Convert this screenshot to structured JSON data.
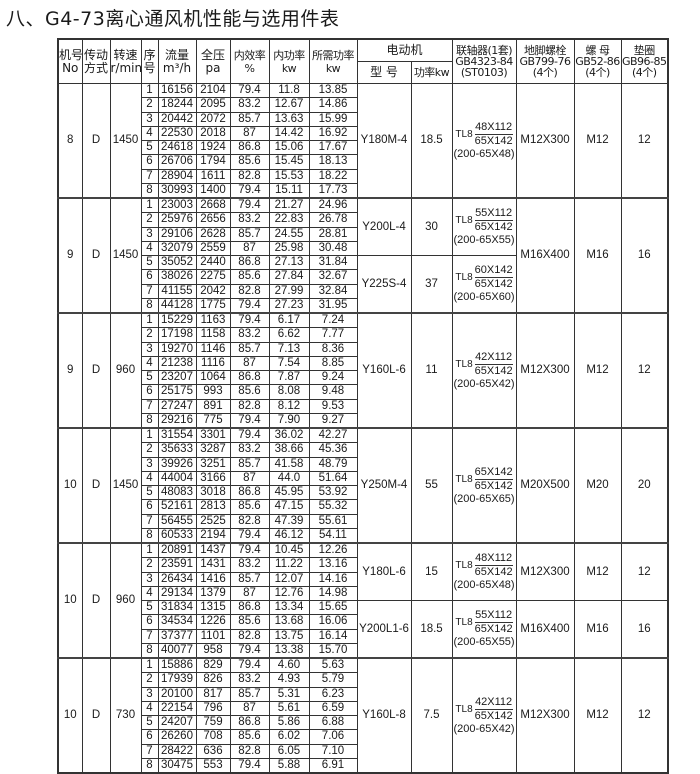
{
  "title": "八、G4-73离心通风机性能与选用件表",
  "header": {
    "machine_no": [
      "机号",
      "No"
    ],
    "drive": [
      "传动",
      "方式"
    ],
    "speed": [
      "转速",
      "r/min"
    ],
    "seq": [
      "序",
      "号"
    ],
    "flow": [
      "流量",
      "m³/h"
    ],
    "pressure": [
      "全压",
      "pa"
    ],
    "efficiency": [
      "内效率",
      "%"
    ],
    "internal_power": [
      "内功率",
      "kw"
    ],
    "required_power": [
      "所需功率",
      "kw"
    ],
    "motor": "电动机",
    "motor_model": "型 号",
    "motor_power": "功率kw",
    "coupling": [
      "联轴器(1套)",
      "GB4323-84",
      "(ST0103)"
    ],
    "anchor_bolt": [
      "地脚螺栓",
      "GB799-76",
      "(4个)"
    ],
    "nut": [
      "螺 母",
      "GB52-86",
      "(4个)"
    ],
    "washer": [
      "垫圈",
      "GB96-85",
      "(4个)"
    ]
  },
  "blocks": [
    {
      "machine_no": "8",
      "drive": "D",
      "speed": "1450",
      "rows": [
        [
          "1",
          "16156",
          "2104",
          "79.4",
          "11.8",
          "13.85"
        ],
        [
          "2",
          "18244",
          "2095",
          "83.2",
          "12.67",
          "14.86"
        ],
        [
          "3",
          "20442",
          "2072",
          "85.7",
          "13.63",
          "15.99"
        ],
        [
          "4",
          "22530",
          "2018",
          "87",
          "14.42",
          "16.92"
        ],
        [
          "5",
          "24618",
          "1924",
          "86.8",
          "15.06",
          "17.67"
        ],
        [
          "6",
          "26706",
          "1794",
          "85.6",
          "15.45",
          "18.13"
        ],
        [
          "7",
          "28904",
          "1611",
          "82.8",
          "15.53",
          "18.22"
        ],
        [
          "8",
          "30993",
          "1400",
          "79.4",
          "15.11",
          "17.73"
        ]
      ],
      "motors": [
        {
          "seq": [
            1,
            8
          ],
          "model": "Y180M-4",
          "power": "18.5",
          "coupling_type": "TL8",
          "coupling_top": "48X112",
          "coupling_bottom": "65X142",
          "coupling_note": "(200-65X48)"
        }
      ],
      "fittings": [
        {
          "seq": [
            1,
            8
          ],
          "bolt": "M12X300",
          "nut": "M12",
          "washer": "12"
        }
      ]
    },
    {
      "machine_no": "9",
      "drive": "D",
      "speed": "1450",
      "rows": [
        [
          "1",
          "23003",
          "2668",
          "79.4",
          "21.27",
          "24.96"
        ],
        [
          "2",
          "25976",
          "2656",
          "83.2",
          "22.83",
          "26.78"
        ],
        [
          "3",
          "29106",
          "2628",
          "85.7",
          "24.55",
          "28.81"
        ],
        [
          "4",
          "32079",
          "2559",
          "87",
          "25.98",
          "30.48"
        ],
        [
          "5",
          "35052",
          "2440",
          "86.8",
          "27.13",
          "31.84"
        ],
        [
          "6",
          "38026",
          "2275",
          "85.6",
          "27.84",
          "32.67"
        ],
        [
          "7",
          "41155",
          "2042",
          "82.8",
          "27.99",
          "32.84"
        ],
        [
          "8",
          "44128",
          "1775",
          "79.4",
          "27.23",
          "31.95"
        ]
      ],
      "motors": [
        {
          "seq": [
            1,
            4
          ],
          "model": "Y200L-4",
          "power": "30",
          "coupling_type": "TL8",
          "coupling_top": "55X112",
          "coupling_bottom": "65X142",
          "coupling_note": "(200-65X55)"
        },
        {
          "seq": [
            5,
            8
          ],
          "model": "Y225S-4",
          "power": "37",
          "coupling_type": "TL8",
          "coupling_top": "60X142",
          "coupling_bottom": "65X142",
          "coupling_note": "(200-65X60)"
        }
      ],
      "fittings": [
        {
          "seq": [
            1,
            8
          ],
          "bolt": "M16X400",
          "nut": "M16",
          "washer": "16"
        }
      ]
    },
    {
      "machine_no": "9",
      "drive": "D",
      "speed": "960",
      "rows": [
        [
          "1",
          "15229",
          "1163",
          "79.4",
          "6.17",
          "7.24"
        ],
        [
          "2",
          "17198",
          "1158",
          "83.2",
          "6.62",
          "7.77"
        ],
        [
          "3",
          "19270",
          "1146",
          "85.7",
          "7.13",
          "8.36"
        ],
        [
          "4",
          "21238",
          "1116",
          "87",
          "7.54",
          "8.85"
        ],
        [
          "5",
          "23207",
          "1064",
          "86.8",
          "7.87",
          "9.24"
        ],
        [
          "6",
          "25175",
          "993",
          "85.6",
          "8.08",
          "9.48"
        ],
        [
          "7",
          "27247",
          "891",
          "82.8",
          "8.12",
          "9.53"
        ],
        [
          "8",
          "29216",
          "775",
          "79.4",
          "7.90",
          "9.27"
        ]
      ],
      "motors": [
        {
          "seq": [
            1,
            8
          ],
          "model": "Y160L-6",
          "power": "11",
          "coupling_type": "TL8",
          "coupling_top": "42X112",
          "coupling_bottom": "65X142",
          "coupling_note": "(200-65X42)"
        }
      ],
      "fittings": [
        {
          "seq": [
            1,
            8
          ],
          "bolt": "M12X300",
          "nut": "M12",
          "washer": "12"
        }
      ]
    },
    {
      "machine_no": "10",
      "drive": "D",
      "speed": "1450",
      "rows": [
        [
          "1",
          "31554",
          "3301",
          "79.4",
          "36.02",
          "42.27"
        ],
        [
          "2",
          "35633",
          "3287",
          "83.2",
          "38.66",
          "45.36"
        ],
        [
          "3",
          "39926",
          "3251",
          "85.7",
          "41.58",
          "48.79"
        ],
        [
          "4",
          "44004",
          "3166",
          "87",
          "44.0",
          "51.64"
        ],
        [
          "5",
          "48083",
          "3018",
          "86.8",
          "45.95",
          "53.92"
        ],
        [
          "6",
          "52161",
          "2813",
          "85.6",
          "47.15",
          "55.32"
        ],
        [
          "7",
          "56455",
          "2525",
          "82.8",
          "47.39",
          "55.61"
        ],
        [
          "8",
          "60533",
          "2194",
          "79.4",
          "46.12",
          "54.11"
        ]
      ],
      "motors": [
        {
          "seq": [
            1,
            8
          ],
          "model": "Y250M-4",
          "power": "55",
          "coupling_type": "TL8",
          "coupling_top": "65X142",
          "coupling_bottom": "65X142",
          "coupling_note": "(200-65X65)"
        }
      ],
      "fittings": [
        {
          "seq": [
            1,
            8
          ],
          "bolt": "M20X500",
          "nut": "M20",
          "washer": "20"
        }
      ]
    },
    {
      "machine_no": "10",
      "drive": "D",
      "speed": "960",
      "rows": [
        [
          "1",
          "20891",
          "1437",
          "79.4",
          "10.45",
          "12.26"
        ],
        [
          "2",
          "23591",
          "1431",
          "83.2",
          "11.22",
          "13.16"
        ],
        [
          "3",
          "26434",
          "1416",
          "85.7",
          "12.07",
          "14.16"
        ],
        [
          "4",
          "29134",
          "1379",
          "87",
          "12.76",
          "14.98"
        ],
        [
          "5",
          "31834",
          "1315",
          "86.8",
          "13.34",
          "15.65"
        ],
        [
          "6",
          "34534",
          "1226",
          "85.6",
          "13.68",
          "16.06"
        ],
        [
          "7",
          "37377",
          "1101",
          "82.8",
          "13.75",
          "16.14"
        ],
        [
          "8",
          "40077",
          "958",
          "79.4",
          "13.38",
          "15.70"
        ]
      ],
      "motors": [
        {
          "seq": [
            1,
            4
          ],
          "model": "Y180L-6",
          "power": "15",
          "coupling_type": "TL8",
          "coupling_top": "48X112",
          "coupling_bottom": "65X142",
          "coupling_note": "(200-65X48)"
        },
        {
          "seq": [
            5,
            8
          ],
          "model": "Y200L1-6",
          "power": "18.5",
          "coupling_type": "TL8",
          "coupling_top": "55X112",
          "coupling_bottom": "65X142",
          "coupling_note": "(200-65X55)"
        }
      ],
      "fittings": [
        {
          "seq": [
            1,
            4
          ],
          "bolt": "M12X300",
          "nut": "M12",
          "washer": "12"
        },
        {
          "seq": [
            5,
            8
          ],
          "bolt": "M16X400",
          "nut": "M16",
          "washer": "16"
        }
      ]
    },
    {
      "machine_no": "10",
      "drive": "D",
      "speed": "730",
      "rows": [
        [
          "1",
          "15886",
          "829",
          "79.4",
          "4.60",
          "5.63"
        ],
        [
          "2",
          "17939",
          "826",
          "83.2",
          "4.93",
          "5.79"
        ],
        [
          "3",
          "20100",
          "817",
          "85.7",
          "5.31",
          "6.23"
        ],
        [
          "4",
          "22154",
          "796",
          "87",
          "5.61",
          "6.59"
        ],
        [
          "5",
          "24207",
          "759",
          "86.8",
          "5.86",
          "6.88"
        ],
        [
          "6",
          "26260",
          "708",
          "85.6",
          "6.02",
          "7.06"
        ],
        [
          "7",
          "28422",
          "636",
          "82.8",
          "6.05",
          "7.10"
        ],
        [
          "8",
          "30475",
          "553",
          "79.4",
          "5.88",
          "6.91"
        ]
      ],
      "motors": [
        {
          "seq": [
            1,
            8
          ],
          "model": "Y160L-8",
          "power": "7.5",
          "coupling_type": "TL8",
          "coupling_top": "42X112",
          "coupling_bottom": "65X142",
          "coupling_note": "(200-65X42)"
        }
      ],
      "fittings": [
        {
          "seq": [
            1,
            8
          ],
          "bolt": "M12X300",
          "nut": "M12",
          "washer": "12"
        }
      ]
    }
  ]
}
